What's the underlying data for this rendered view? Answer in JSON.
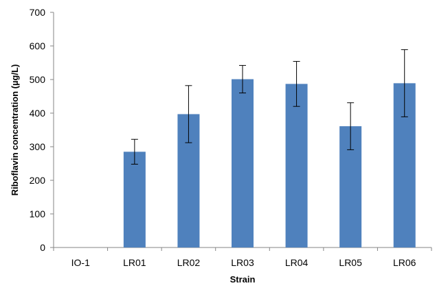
{
  "chart_data": {
    "type": "bar",
    "title": "",
    "xlabel": "Strain",
    "ylabel": "Riboflavin concentration (µg/L)",
    "categories": [
      "IO-1",
      "LR01",
      "LR02",
      "LR03",
      "LR04",
      "LR05",
      "LR06"
    ],
    "series": [
      {
        "values": [
          0,
          285,
          397,
          501,
          487,
          361,
          489
        ],
        "error": [
          0,
          37,
          85,
          41,
          67,
          70,
          100
        ],
        "color": "#4f81bd"
      }
    ],
    "ylim": [
      0,
      700
    ],
    "yticks": [
      0,
      100,
      200,
      300,
      400,
      500,
      600,
      700
    ],
    "grid": false,
    "legend": "none"
  }
}
